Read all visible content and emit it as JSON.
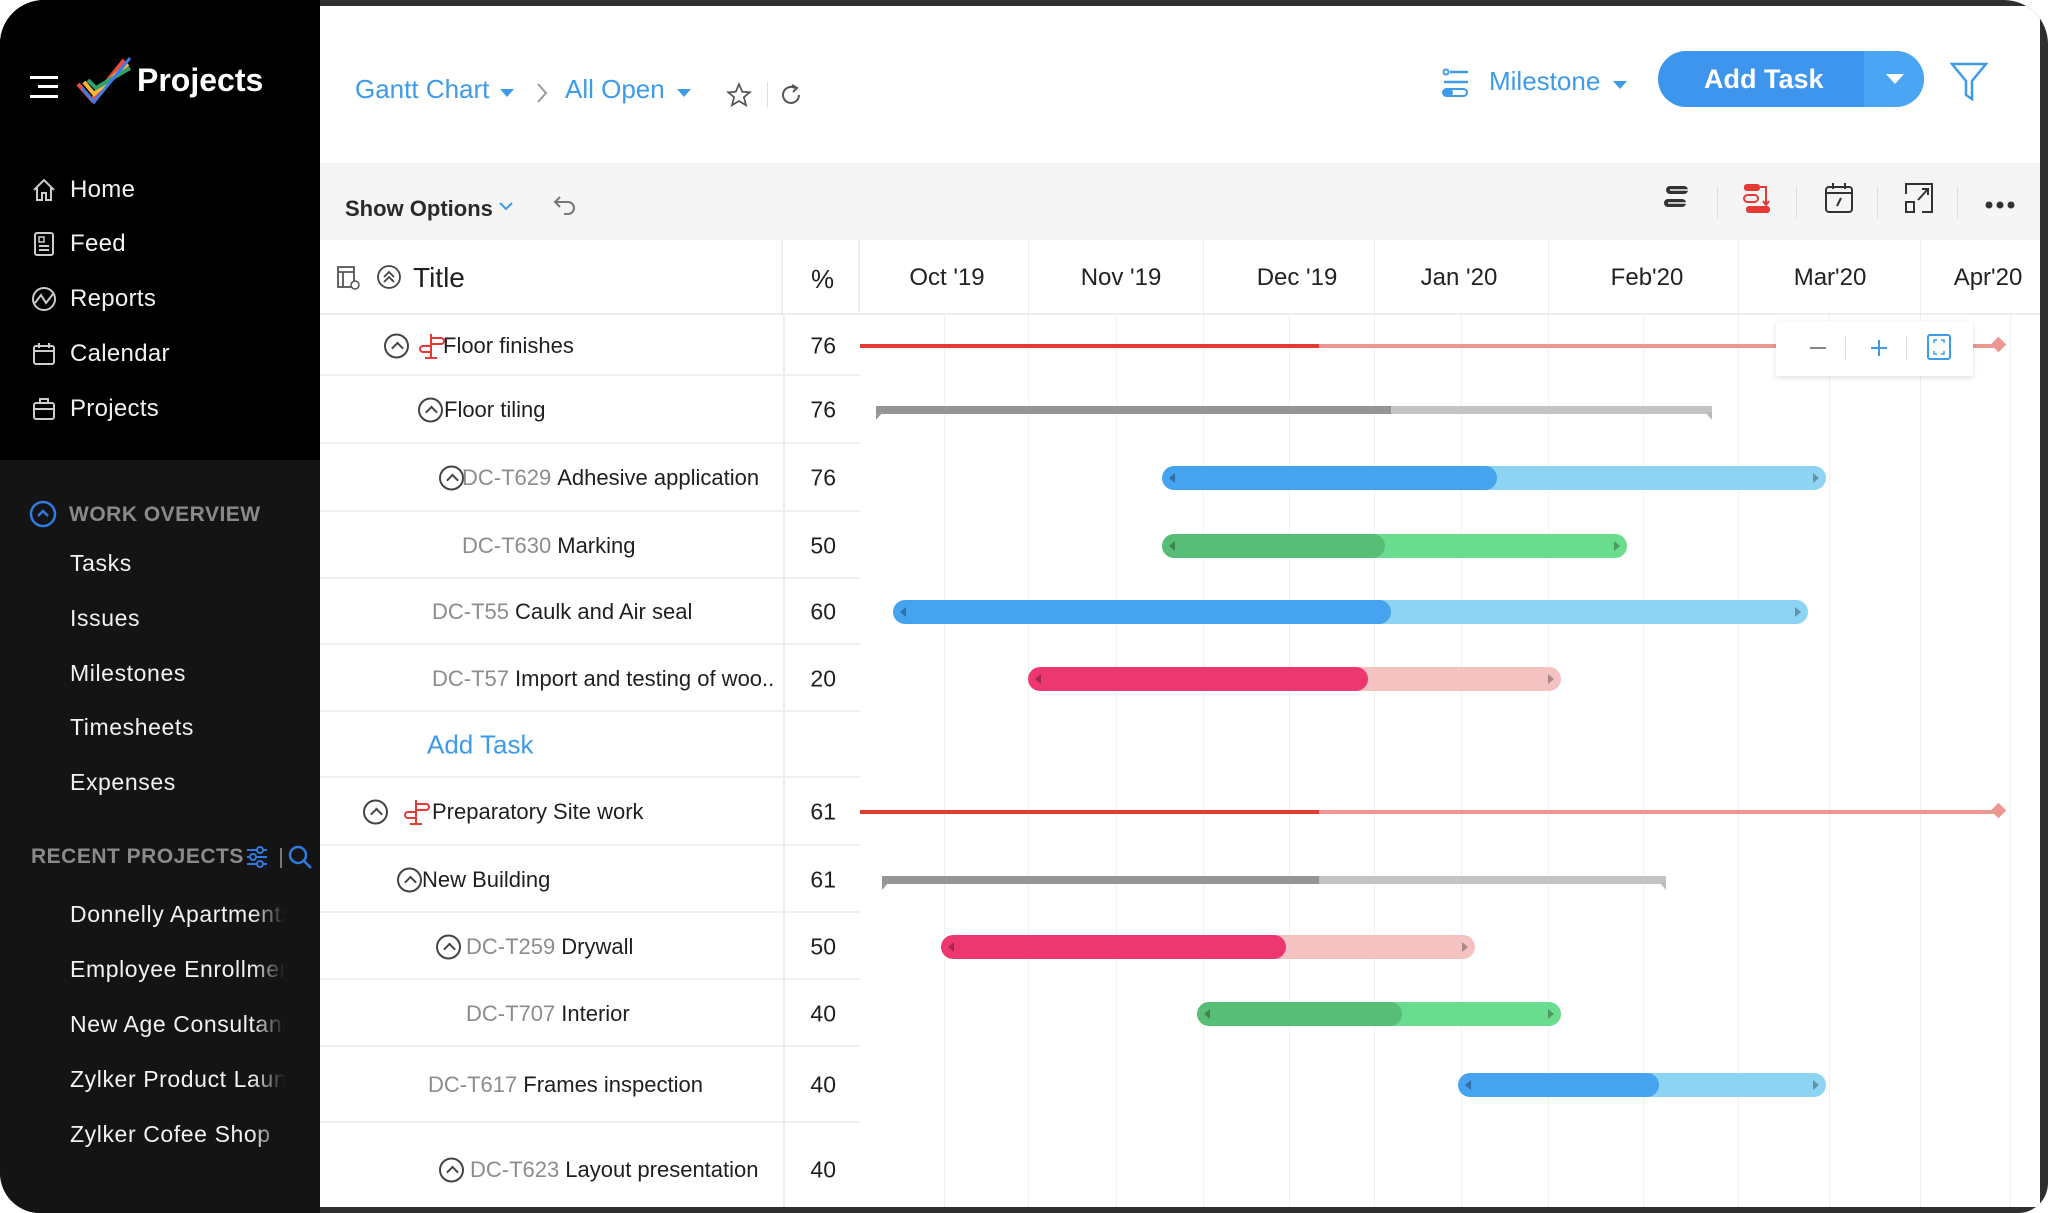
{
  "app": {
    "title": "Projects"
  },
  "sidebar": {
    "nav": [
      {
        "label": "Home",
        "icon": "home-icon"
      },
      {
        "label": "Feed",
        "icon": "feed-icon"
      },
      {
        "label": "Reports",
        "icon": "reports-icon"
      },
      {
        "label": "Calendar",
        "icon": "calendar-icon"
      },
      {
        "label": "Projects",
        "icon": "briefcase-icon"
      }
    ],
    "work_overview": {
      "heading": "WORK OVERVIEW",
      "items": [
        "Tasks",
        "Issues",
        "Milestones",
        "Timesheets",
        "Expenses"
      ]
    },
    "recent_projects": {
      "heading": "RECENT PROJECTS",
      "items": [
        "Donnelly Apartments",
        "Employee Enrollment",
        "New Age Consultancy",
        "Zylker Product Launch",
        "Zylker Cofee Shop"
      ]
    }
  },
  "header": {
    "breadcrumb": [
      "Gantt Chart",
      "All Open"
    ],
    "group_by": "Milestone",
    "add_task_label": "Add Task"
  },
  "toolbar": {
    "show_options": "Show Options"
  },
  "table": {
    "col_title": "Title",
    "col_percent": "%",
    "add_task_label": "Add Task"
  },
  "colors": {
    "accent": "#3d9be9",
    "blue_done": "#46a3ef",
    "blue_rest": "#8dd4f2",
    "green_done": "#57bd77",
    "green_rest": "#6adc8e",
    "red_done": "#ec3770",
    "red_rest": "#f5c2c2",
    "gray_done": "#959595",
    "gray_rest": "#c4c4c4",
    "milestone_done": "#e03c31",
    "milestone_rest": "#eb9892"
  },
  "chart_data": {
    "type": "gantt",
    "months": [
      "Oct '19",
      "Nov '19",
      "Dec '19",
      "Jan '20",
      "Feb'20",
      "Mar'20",
      "Apr'20"
    ],
    "rows": [
      {
        "id": "",
        "name": "Floor finishes",
        "percent": "76",
        "kind": "milestone",
        "collapsible": true,
        "start": "2019-10-01",
        "progress_to": "2019-12-22",
        "end": "2020-04-14"
      },
      {
        "id": "",
        "name": "Floor tiling",
        "percent": "76",
        "kind": "tasklist",
        "collapsible": true,
        "start": "2019-10-04",
        "progress_to": "2020-01-04",
        "end": "2020-02-26"
      },
      {
        "id": "DC-T629",
        "name": "Adhesive application",
        "percent": "76",
        "kind": "task",
        "color": "blue",
        "collapsible": true,
        "start": "2019-11-24",
        "progress_to": "2020-01-23",
        "end": "2020-03-16"
      },
      {
        "id": "DC-T630",
        "name": "Marking",
        "percent": "50",
        "kind": "task",
        "color": "green",
        "collapsible": false,
        "start": "2019-11-24",
        "progress_to": "2020-01-03",
        "end": "2020-02-13"
      },
      {
        "id": "DC-T55",
        "name": "Caulk and Air seal",
        "percent": "60",
        "kind": "task",
        "color": "blue",
        "collapsible": false,
        "start": "2019-10-07",
        "progress_to": "2020-01-04",
        "end": "2020-03-13"
      },
      {
        "id": "DC-T57",
        "name": "Import and testing of woo..",
        "percent": "20",
        "kind": "task",
        "color": "red",
        "collapsible": false,
        "start": "2019-11-01",
        "progress_to": "2019-12-31",
        "end": "2020-02-03"
      },
      {
        "kind": "add"
      },
      {
        "id": "",
        "name": "Preparatory Site work",
        "percent": "61",
        "kind": "milestone",
        "collapsible": true,
        "start": "2019-10-01",
        "progress_to": "2019-12-22",
        "end": "2020-04-14"
      },
      {
        "id": "",
        "name": "New Building",
        "percent": "61",
        "kind": "tasklist",
        "collapsible": true,
        "start": "2019-10-05",
        "progress_to": "2019-12-22",
        "end": "2020-02-19"
      },
      {
        "id": "DC-T259",
        "name": "Drywall",
        "percent": "50",
        "kind": "task",
        "color": "red",
        "collapsible": true,
        "start": "2019-10-16",
        "progress_to": "2019-12-16",
        "end": "2020-01-19"
      },
      {
        "id": "DC-T707",
        "name": "Interior",
        "percent": "40",
        "kind": "task",
        "color": "green",
        "collapsible": false,
        "start": "2019-11-30",
        "progress_to": "2020-01-06",
        "end": "2020-02-03"
      },
      {
        "id": "DC-T617",
        "name": "Frames inspection",
        "percent": "40",
        "kind": "task",
        "color": "blue",
        "collapsible": false,
        "start": "2020-01-16",
        "progress_to": "2020-02-18",
        "end": "2020-03-16"
      },
      {
        "id": "DC-T623",
        "name": "Layout presentation",
        "percent": "40",
        "kind": "task",
        "collapsible": true
      }
    ]
  }
}
